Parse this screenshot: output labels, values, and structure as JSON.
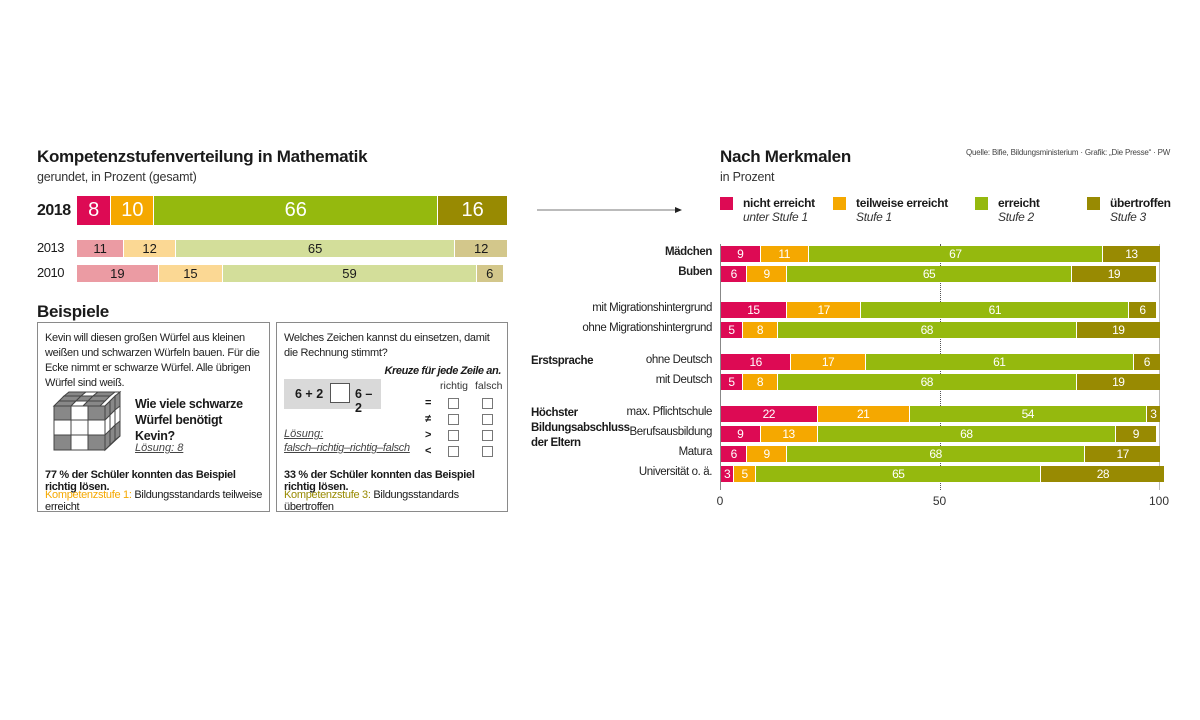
{
  "colors": {
    "nicht_erreicht": "#dd0a54",
    "teilweise": "#f5a800",
    "erreicht": "#95b90e",
    "uebertroffen": "#988a02",
    "nicht_erreicht_light": "#eb9ba3",
    "teilweise_light": "#fbd894",
    "erreicht_light": "#d3de9a",
    "uebertroffen_light": "#d3c78b"
  },
  "left": {
    "title": "Kompetenzstufenverteilung in Mathematik",
    "subtitle": "gerundet, in Prozent (gesamt)"
  },
  "examples": {
    "heading": "Beispiele",
    "box1": {
      "text": "Kevin will diesen großen Würfel aus kleinen weißen und schwarzen Würfeln bauen. Für die Ecke nimmt er schwarze Würfel. Alle übrigen Würfel sind weiß.",
      "question": "Wie viele schwarze Würfel benötigt Kevin?",
      "solution": "Lösung: 8",
      "result": "77 % der Schüler konnten das Beispiel richtig lösen.",
      "level_label": "Kompetenzstufe 1:",
      "level_text": "Bildungsstandards teilweise erreicht",
      "icon": "cube-icon"
    },
    "box2": {
      "text": "Welches Zeichen kannst du einsetzen, damit die Rechnung stimmt?",
      "instruction": "Kreuze für jede Zeile an.",
      "col_richtig": "richtig",
      "col_falsch": "falsch",
      "equation_left": "6 + 2",
      "equation_right": "6 – 2",
      "symbols": [
        "=",
        "≠",
        ">",
        "<"
      ],
      "solution_label": "Lösung:",
      "solution_text": "falsch–richtig–richtig–falsch",
      "result": "33 % der Schüler konnten das Beispiel richtig lösen.",
      "level_label": "Kompetenzstufe 3:",
      "level_text": "Bildungsstandards übertroffen"
    }
  },
  "right": {
    "title": "Nach Merkmalen",
    "subtitle": "in Prozent",
    "source": "Quelle: Bifie, Bildungsministerium · Grafik: „Die Presse“ · PW",
    "legend": [
      {
        "title": "nicht erreicht",
        "sub": "unter Stufe 1",
        "color_key": "nicht_erreicht"
      },
      {
        "title": "teilweise erreicht",
        "sub": "Stufe 1",
        "color_key": "teilweise"
      },
      {
        "title": "erreicht",
        "sub": "Stufe 2",
        "color_key": "erreicht"
      },
      {
        "title": "übertroffen",
        "sub": "Stufe 3",
        "color_key": "uebertroffen"
      }
    ],
    "groups": {
      "erstsprache": "Erstsprache",
      "bildung": "Höchster Bildungsabschluss der Eltern"
    }
  },
  "chart_data": [
    {
      "type": "bar",
      "orientation": "horizontal-stacked",
      "title": "Kompetenzstufenverteilung in Mathematik",
      "subtitle": "gerundet, in Prozent (gesamt)",
      "categories": [
        "2018",
        "2013",
        "2010"
      ],
      "series": [
        {
          "name": "nicht erreicht",
          "values": [
            8,
            11,
            19
          ]
        },
        {
          "name": "teilweise erreicht",
          "values": [
            10,
            12,
            15
          ]
        },
        {
          "name": "erreicht",
          "values": [
            66,
            65,
            59
          ]
        },
        {
          "name": "übertroffen",
          "values": [
            16,
            12,
            6
          ]
        }
      ],
      "xlim": [
        0,
        100
      ]
    },
    {
      "type": "bar",
      "orientation": "horizontal-stacked",
      "title": "Nach Merkmalen",
      "subtitle": "in Prozent",
      "categories": [
        "Mädchen",
        "Buben",
        "mit Migrationshintergrund",
        "ohne Migrationshintergrund",
        "ohne Deutsch",
        "mit Deutsch",
        "max. Pflichtschule",
        "Berufsausbildung",
        "Matura",
        "Universität o. ä."
      ],
      "bold_categories": [
        "Mädchen",
        "Buben"
      ],
      "series": [
        {
          "name": "nicht erreicht",
          "values": [
            9,
            6,
            15,
            5,
            16,
            5,
            22,
            9,
            6,
            3
          ]
        },
        {
          "name": "teilweise erreicht",
          "values": [
            11,
            9,
            17,
            8,
            17,
            8,
            21,
            13,
            9,
            5
          ]
        },
        {
          "name": "erreicht",
          "values": [
            67,
            65,
            61,
            68,
            61,
            68,
            54,
            68,
            68,
            65
          ]
        },
        {
          "name": "übertroffen",
          "values": [
            13,
            19,
            6,
            19,
            6,
            19,
            3,
            9,
            17,
            28
          ]
        }
      ],
      "xlim": [
        0,
        100
      ],
      "xticks": [
        "0",
        "50",
        "100"
      ],
      "reference_line": 50,
      "legend": "top"
    }
  ]
}
